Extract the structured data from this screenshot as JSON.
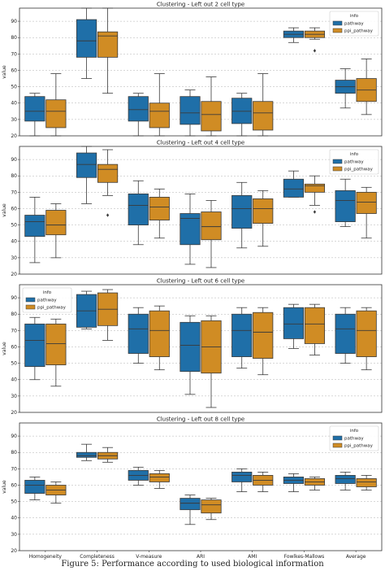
{
  "caption": "Figure 5: Performance according to used biological information",
  "colors": {
    "pathway": "#1f6fa8",
    "ppi_pathway": "#d08c24",
    "grid": "#b0b0b0"
  },
  "chart_data": [
    {
      "type": "box",
      "title": "Clustering - Left out 2 cell type",
      "ylabel": "value",
      "ylim": [
        20,
        98
      ],
      "yticks": [
        20,
        30,
        40,
        50,
        60,
        70,
        80,
        90
      ],
      "grid": true,
      "legend": {
        "title": "info",
        "entries": [
          "pathway",
          "ppi_pathway"
        ],
        "placement": "upper-right"
      },
      "categories": [
        "Homogeneity",
        "Completeness",
        "V-measure",
        "ARI",
        "AMI",
        "Fowlkes-Mallows",
        "Average"
      ],
      "series": [
        {
          "name": "pathway",
          "boxes": [
            {
              "min": 20,
              "q1": 29,
              "median": 35,
              "q3": 44,
              "max": 46,
              "outliers": []
            },
            {
              "min": 55,
              "q1": 68,
              "median": 78,
              "q3": 91,
              "max": 98,
              "outliers": []
            },
            {
              "min": 20,
              "q1": 29,
              "median": 36,
              "q3": 44,
              "max": 46,
              "outliers": []
            },
            {
              "min": 20,
              "q1": 27,
              "median": 34,
              "q3": 44,
              "max": 48,
              "outliers": []
            },
            {
              "min": 20,
              "q1": 27.5,
              "median": 35,
              "q3": 43,
              "max": 46,
              "outliers": []
            },
            {
              "min": 77,
              "q1": 80,
              "median": 82,
              "q3": 84,
              "max": 86,
              "outliers": []
            },
            {
              "min": 37,
              "q1": 46,
              "median": 50,
              "q3": 54,
              "max": 61,
              "outliers": []
            }
          ]
        },
        {
          "name": "ppi_pathway",
          "boxes": [
            {
              "min": 20,
              "q1": 25,
              "median": 35,
              "q3": 42,
              "max": 58,
              "outliers": []
            },
            {
              "min": 46,
              "q1": 68,
              "median": 81,
              "q3": 83.5,
              "max": 98,
              "outliers": []
            },
            {
              "min": 20,
              "q1": 25,
              "median": 35,
              "q3": 40,
              "max": 58,
              "outliers": []
            },
            {
              "min": 20,
              "q1": 23,
              "median": 33,
              "q3": 41,
              "max": 56,
              "outliers": []
            },
            {
              "min": 20,
              "q1": 23.5,
              "median": 34,
              "q3": 41,
              "max": 58,
              "outliers": []
            },
            {
              "min": 79,
              "q1": 80,
              "median": 82,
              "q3": 84,
              "max": 86,
              "outliers": [
                72
              ]
            },
            {
              "min": 33,
              "q1": 41,
              "median": 48,
              "q3": 55,
              "max": 67,
              "outliers": []
            }
          ]
        }
      ]
    },
    {
      "type": "box",
      "title": "Clustering - Left out 4 cell type",
      "ylabel": "value",
      "ylim": [
        20,
        98
      ],
      "yticks": [
        20,
        30,
        40,
        50,
        60,
        70,
        80,
        90
      ],
      "grid": true,
      "legend": {
        "title": "info",
        "entries": [
          "pathway",
          "ppi_pathway"
        ],
        "placement": "upper-right"
      },
      "categories": [
        "Homogeneity",
        "Completeness",
        "V-measure",
        "ARI",
        "AMI",
        "Fowlkes-Mallows",
        "Average"
      ],
      "series": [
        {
          "name": "pathway",
          "boxes": [
            {
              "min": 27,
              "q1": 43,
              "median": 52,
              "q3": 56,
              "max": 67,
              "outliers": []
            },
            {
              "min": 63,
              "q1": 79,
              "median": 87,
              "q3": 94,
              "max": 98,
              "outliers": []
            },
            {
              "min": 38,
              "q1": 50,
              "median": 62,
              "q3": 69,
              "max": 77,
              "outliers": []
            },
            {
              "min": 26,
              "q1": 38,
              "median": 54,
              "q3": 57,
              "max": 69,
              "outliers": []
            },
            {
              "min": 36,
              "q1": 48,
              "median": 60,
              "q3": 68,
              "max": 76,
              "outliers": []
            },
            {
              "min": 67,
              "q1": 67,
              "median": 72,
              "q3": 78,
              "max": 83,
              "outliers": []
            },
            {
              "min": 49,
              "q1": 52,
              "median": 65,
              "q3": 71,
              "max": 78,
              "outliers": []
            }
          ]
        },
        {
          "name": "ppi_pathway",
          "boxes": [
            {
              "min": 30,
              "q1": 44,
              "median": 50,
              "q3": 59,
              "max": 63,
              "outliers": []
            },
            {
              "min": 68,
              "q1": 76,
              "median": 84,
              "q3": 87,
              "max": 96,
              "outliers": [
                56
              ]
            },
            {
              "min": 42,
              "q1": 53,
              "median": 61,
              "q3": 67,
              "max": 72,
              "outliers": []
            },
            {
              "min": 24,
              "q1": 41,
              "median": 49,
              "q3": 58,
              "max": 65,
              "outliers": []
            },
            {
              "min": 37,
              "q1": 51,
              "median": 60,
              "q3": 66,
              "max": 71,
              "outliers": []
            },
            {
              "min": 62,
              "q1": 70,
              "median": 74,
              "q3": 75,
              "max": 80,
              "outliers": [
                58
              ]
            },
            {
              "min": 42,
              "q1": 57,
              "median": 64,
              "q3": 70,
              "max": 73,
              "outliers": []
            }
          ]
        }
      ]
    },
    {
      "type": "box",
      "title": "Clustering - Left out 6 cell type",
      "ylabel": "value",
      "ylim": [
        20,
        98
      ],
      "yticks": [
        20,
        30,
        40,
        50,
        60,
        70,
        80,
        90
      ],
      "grid": true,
      "legend": {
        "title": "info",
        "entries": [
          "pathway",
          "ppi_pathway"
        ],
        "placement": "upper-left"
      },
      "categories": [
        "Homogeneity",
        "Completeness",
        "V-measure",
        "ARI",
        "AMI",
        "Fowlkes-Mallows",
        "Average"
      ],
      "series": [
        {
          "name": "pathway",
          "boxes": [
            {
              "min": 40,
              "q1": 48,
              "median": 64,
              "q3": 74,
              "max": 78,
              "outliers": []
            },
            {
              "min": 71,
              "q1": 72,
              "median": 82,
              "q3": 92,
              "max": 94,
              "outliers": []
            },
            {
              "min": 50,
              "q1": 56,
              "median": 71,
              "q3": 80,
              "max": 84,
              "outliers": []
            },
            {
              "min": 31,
              "q1": 45,
              "median": 61,
              "q3": 75,
              "max": 79,
              "outliers": []
            },
            {
              "min": 47,
              "q1": 54,
              "median": 70,
              "q3": 80,
              "max": 84,
              "outliers": []
            },
            {
              "min": 59,
              "q1": 65,
              "median": 74,
              "q3": 84,
              "max": 86,
              "outliers": []
            },
            {
              "min": 50,
              "q1": 56,
              "median": 71,
              "q3": 80,
              "max": 84,
              "outliers": []
            }
          ]
        },
        {
          "name": "ppi_pathway",
          "boxes": [
            {
              "min": 36,
              "q1": 49,
              "median": 62,
              "q3": 74,
              "max": 77,
              "outliers": []
            },
            {
              "min": 64,
              "q1": 73,
              "median": 83,
              "q3": 93,
              "max": 95,
              "outliers": []
            },
            {
              "min": 46,
              "q1": 54,
              "median": 70,
              "q3": 82,
              "max": 85,
              "outliers": []
            },
            {
              "min": 23,
              "q1": 44,
              "median": 60,
              "q3": 76,
              "max": 79,
              "outliers": []
            },
            {
              "min": 43,
              "q1": 53,
              "median": 69,
              "q3": 81,
              "max": 84,
              "outliers": []
            },
            {
              "min": 55,
              "q1": 62,
              "median": 74,
              "q3": 84,
              "max": 86,
              "outliers": []
            },
            {
              "min": 46,
              "q1": 54,
              "median": 70,
              "q3": 82,
              "max": 84,
              "outliers": []
            }
          ]
        }
      ]
    },
    {
      "type": "box",
      "title": "Clustering - Left out 8 cell type",
      "ylabel": "value",
      "ylim": [
        20,
        98
      ],
      "yticks": [
        20,
        30,
        40,
        50,
        60,
        70,
        80,
        90
      ],
      "grid": true,
      "legend": {
        "title": "info",
        "entries": [
          "pathway",
          "ppi_pathway"
        ],
        "placement": "upper-right"
      },
      "categories": [
        "Homogeneity",
        "Completeness",
        "V-measure",
        "ARI",
        "AMI",
        "Fowlkes-Mallows",
        "Average"
      ],
      "series": [
        {
          "name": "pathway",
          "boxes": [
            {
              "min": 51,
              "q1": 55,
              "median": 60,
              "q3": 63,
              "max": 65,
              "outliers": []
            },
            {
              "min": 75,
              "q1": 77,
              "median": 78,
              "q3": 80,
              "max": 85,
              "outliers": []
            },
            {
              "min": 60,
              "q1": 63,
              "median": 66,
              "q3": 69,
              "max": 71,
              "outliers": []
            },
            {
              "min": 36,
              "q1": 45,
              "median": 49,
              "q3": 52,
              "max": 54,
              "outliers": []
            },
            {
              "min": 56,
              "q1": 62,
              "median": 66,
              "q3": 68,
              "max": 70,
              "outliers": []
            },
            {
              "min": 56,
              "q1": 61,
              "median": 63,
              "q3": 65,
              "max": 67,
              "outliers": []
            },
            {
              "min": 57,
              "q1": 61,
              "median": 64,
              "q3": 66,
              "max": 68,
              "outliers": []
            }
          ]
        },
        {
          "name": "ppi_pathway",
          "boxes": [
            {
              "min": 49,
              "q1": 54,
              "median": 57,
              "q3": 60,
              "max": 62,
              "outliers": []
            },
            {
              "min": 74,
              "q1": 76,
              "median": 78,
              "q3": 80,
              "max": 83,
              "outliers": []
            },
            {
              "min": 58,
              "q1": 62,
              "median": 65,
              "q3": 67,
              "max": 69,
              "outliers": []
            },
            {
              "min": 39,
              "q1": 43,
              "median": 48,
              "q3": 51,
              "max": 52,
              "outliers": []
            },
            {
              "min": 56,
              "q1": 60,
              "median": 63,
              "q3": 66,
              "max": 68,
              "outliers": []
            },
            {
              "min": 57,
              "q1": 60,
              "median": 62,
              "q3": 64,
              "max": 65,
              "outliers": []
            },
            {
              "min": 57,
              "q1": 59,
              "median": 62,
              "q3": 64,
              "max": 66,
              "outliers": []
            }
          ]
        }
      ]
    }
  ]
}
